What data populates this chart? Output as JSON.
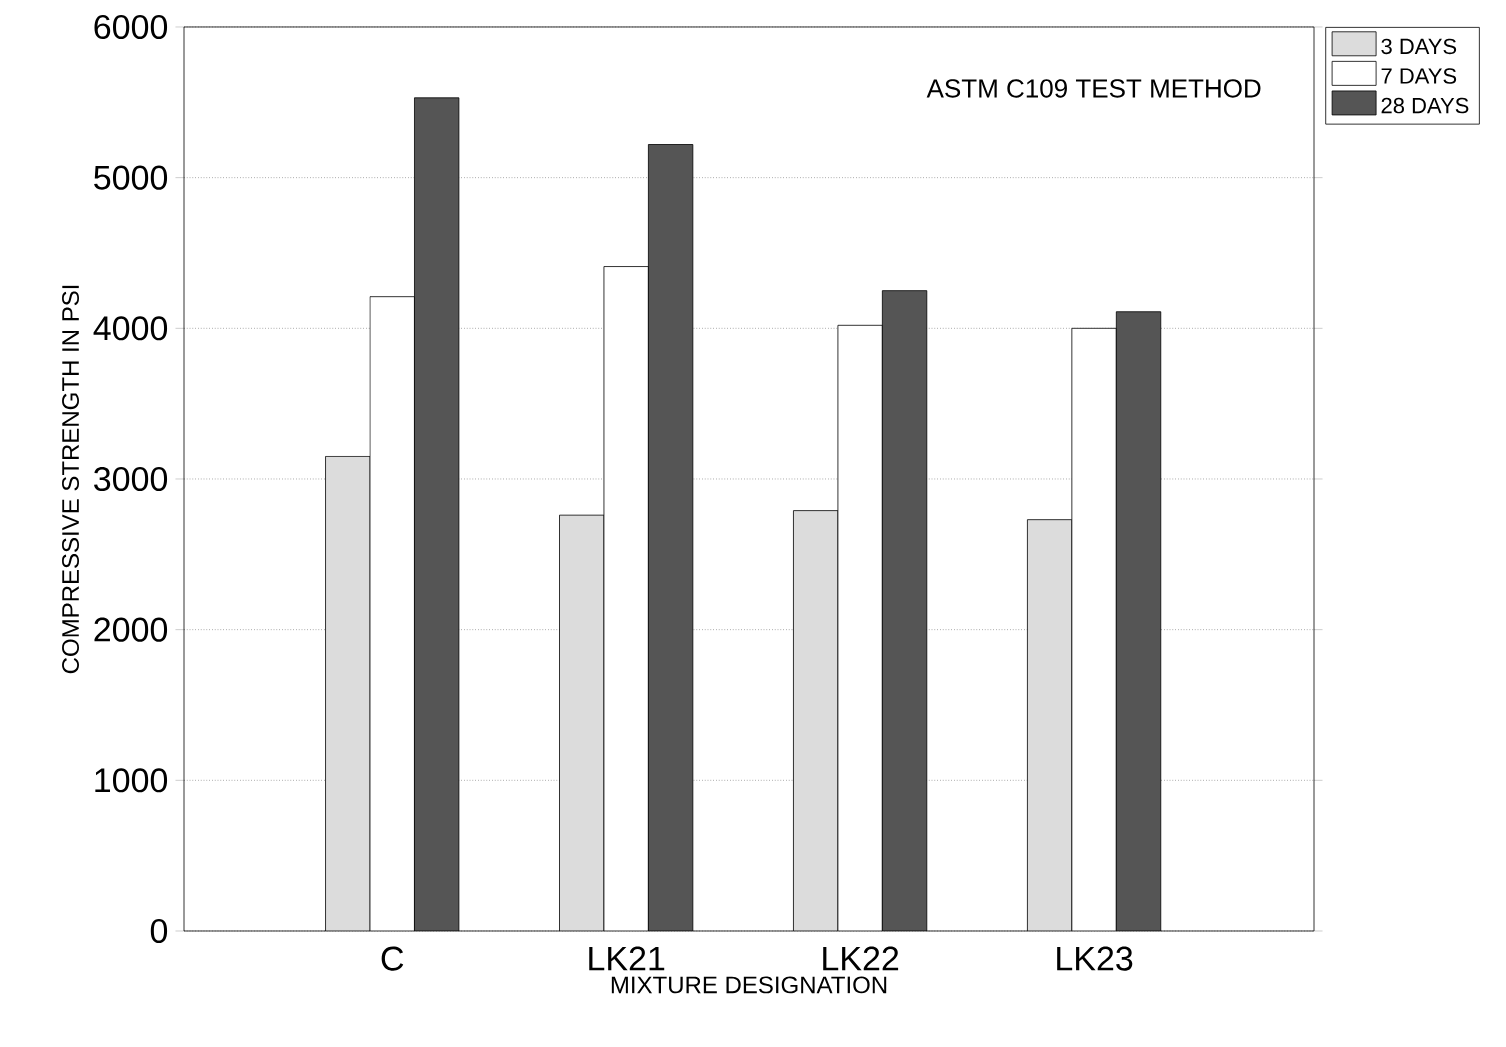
{
  "chart_data": {
    "type": "bar",
    "xlabel": "MIXTURE DESIGNATION",
    "ylabel": "COMPRESSIVE STRENGTH IN PSI",
    "categories": [
      "C",
      "LK21",
      "LK22",
      "LK23"
    ],
    "series": [
      {
        "name": "3 DAYS",
        "color": "#dcdcdc",
        "values": [
          3150,
          2760,
          2790,
          2730
        ]
      },
      {
        "name": "7 DAYS",
        "color": "#ffffff",
        "values": [
          4210,
          4410,
          4020,
          4000
        ]
      },
      {
        "name": "28 DAYS",
        "color": "#555555",
        "values": [
          5530,
          5220,
          4250,
          4110
        ]
      }
    ],
    "ylim": [
      0,
      6000
    ],
    "yticks": [
      0,
      1000,
      2000,
      3000,
      4000,
      5000,
      6000
    ],
    "grid": "y",
    "legend": "top right",
    "annotations": [
      "ASTM C109 TEST METHOD"
    ]
  }
}
